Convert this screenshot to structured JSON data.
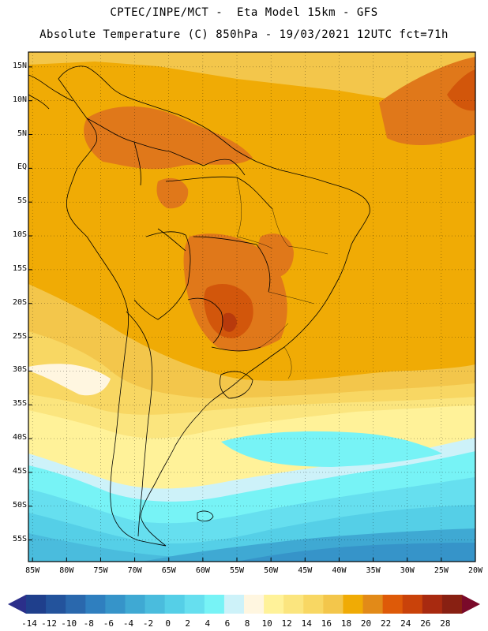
{
  "header": {
    "line1": "CPTEC/INPE/MCT -  Eta Model 15km - GFS",
    "line2": "Absolute Temperature (C) 850hPa - 19/03/2021 12UTC fct=71h"
  },
  "map": {
    "lat_labels": [
      "15N",
      "10N",
      "5N",
      "EQ",
      "5S",
      "10S",
      "15S",
      "20S",
      "25S",
      "30S",
      "35S",
      "40S",
      "45S",
      "50S",
      "55S"
    ],
    "lat_values": [
      15,
      10,
      5,
      0,
      -5,
      -10,
      -15,
      -20,
      -25,
      -30,
      -35,
      -40,
      -45,
      -50,
      -55
    ],
    "lon_labels": [
      "85W",
      "80W",
      "75W",
      "70W",
      "65W",
      "60W",
      "55W",
      "50W",
      "45W",
      "40W",
      "35W",
      "30W",
      "25W",
      "20W"
    ],
    "lon_values": [
      -85,
      -80,
      -75,
      -70,
      -65,
      -60,
      -55,
      -50,
      -45,
      -40,
      -35,
      -30,
      -25,
      -20
    ],
    "lat_range": [
      -58.2,
      17.2
    ],
    "lon_range": [
      -85.6,
      -20.0
    ]
  },
  "colorbar": {
    "labels": [
      "-14",
      "-12",
      "-10",
      "-8",
      "-6",
      "-4",
      "-2",
      "0",
      "2",
      "4",
      "6",
      "8",
      "10",
      "12",
      "14",
      "16",
      "18",
      "20",
      "22",
      "24",
      "26",
      "28"
    ],
    "colors": [
      "#1f3f8c",
      "#23539c",
      "#2a68ad",
      "#2f7fbf",
      "#3694c9",
      "#3fa9d3",
      "#4abcdd",
      "#55cfe7",
      "#66dfef",
      "#77f3f6",
      "#cdf2f9",
      "#fff6e0",
      "#fff299",
      "#fbe57e",
      "#f8d763",
      "#f3c64b",
      "#f0ab05",
      "#e28a18",
      "#de5a08",
      "#c9420a",
      "#a82a10",
      "#882012"
    ],
    "end_low": "#2b2f8a",
    "end_high": "#7a0a2a"
  },
  "field_colors": {
    "t28": "#7a2410",
    "t26": "#9a2a10",
    "t24": "#b83a0c",
    "t22": "#d2560b",
    "t20": "#e0781a",
    "t18": "#f0ab05",
    "t16": "#f3c64b",
    "t14": "#f8d763",
    "t12": "#fbe57e",
    "t10": "#fff299",
    "t8": "#fff6e0",
    "t6": "#cdf2f9",
    "t4": "#77f3f6",
    "t2": "#66dfef",
    "t0": "#55cfe7",
    "tm2": "#4abcdd",
    "tm4": "#3fa9d3",
    "tm6": "#3694c9",
    "tm8": "#2f7fbf",
    "tm10": "#2a68ad"
  }
}
